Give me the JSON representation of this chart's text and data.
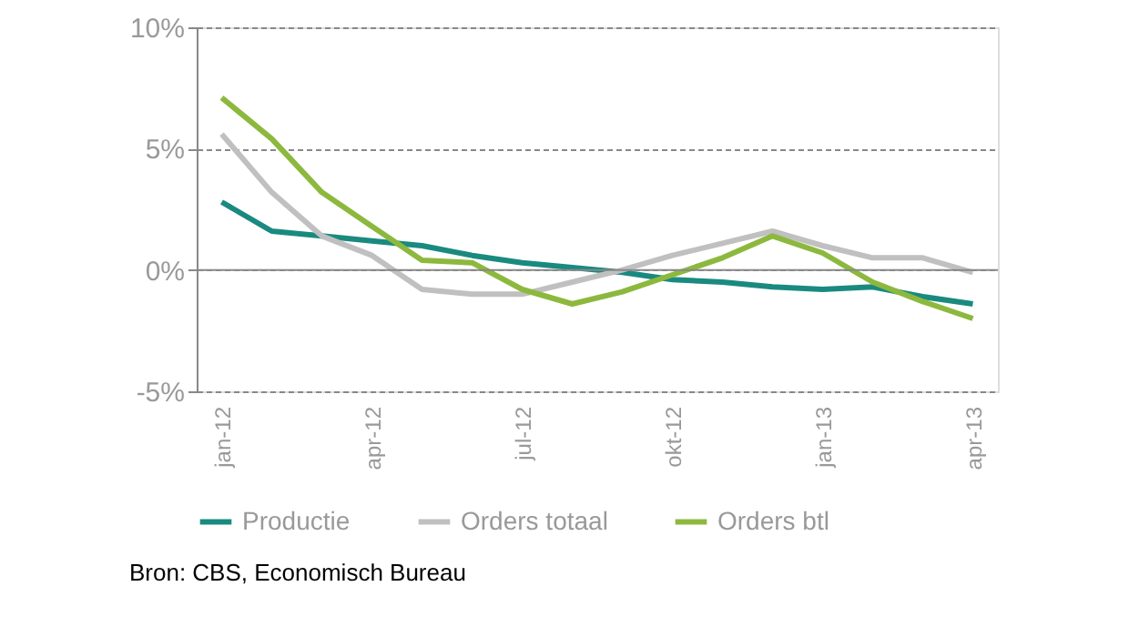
{
  "chart_data": {
    "type": "line",
    "categories": [
      "jan-12",
      null,
      null,
      "apr-12",
      null,
      null,
      "jul-12",
      null,
      null,
      "okt-12",
      null,
      null,
      "jan-13",
      null,
      null,
      "apr-13"
    ],
    "series": [
      {
        "name": "Productie",
        "color": "#1a8a80",
        "values": [
          2.8,
          1.6,
          1.4,
          1.2,
          1.0,
          0.6,
          0.3,
          0.1,
          -0.1,
          -0.4,
          -0.5,
          -0.7,
          -0.8,
          -0.7,
          -1.1,
          -1.4
        ]
      },
      {
        "name": "Orders totaal",
        "color": "#c0c0c0",
        "values": [
          5.6,
          3.2,
          1.4,
          0.6,
          -0.8,
          -1.0,
          -1.0,
          -0.5,
          0.0,
          0.6,
          1.1,
          1.6,
          1.0,
          0.5,
          0.5,
          -0.1
        ]
      },
      {
        "name": "Orders btl",
        "color": "#8db83e",
        "values": [
          7.1,
          5.4,
          3.2,
          1.8,
          0.4,
          0.3,
          -0.8,
          -1.4,
          -0.9,
          -0.2,
          0.5,
          1.4,
          0.7,
          -0.5,
          -1.3,
          -2.0
        ]
      }
    ],
    "ylim": [
      -5,
      10
    ],
    "yticks": [
      {
        "value": -5,
        "label": "-5%"
      },
      {
        "value": 0,
        "label": "0%"
      },
      {
        "value": 5,
        "label": "5%"
      },
      {
        "value": 10,
        "label": "10%"
      }
    ],
    "grid": "y",
    "legend": "bottom",
    "marker": "none",
    "line_style": "solid",
    "annotations": [
      "Bron: CBS, Economisch Bureau"
    ]
  }
}
